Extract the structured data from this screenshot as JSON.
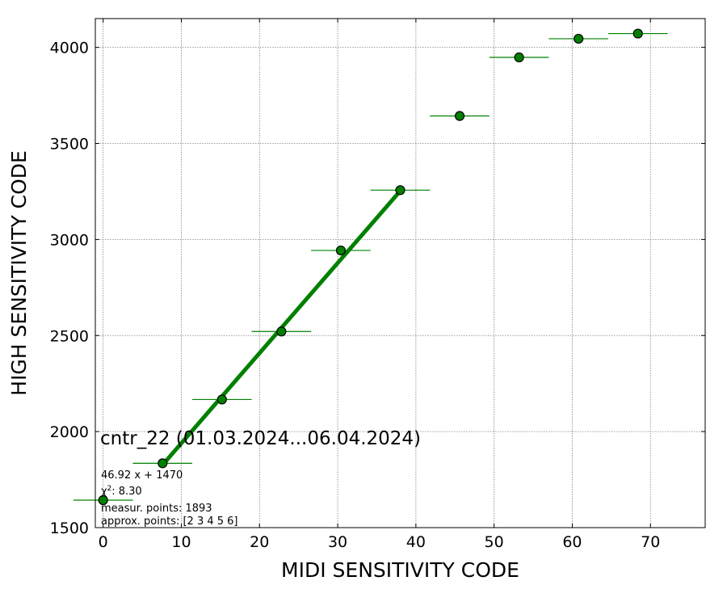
{
  "chart_data": {
    "type": "scatter",
    "xlabel": "MIDI SENSITIVITY CODE",
    "ylabel": "HIGH SENSITIVITY CODE",
    "xlim": [
      -1,
      77
    ],
    "ylim": [
      1500,
      4150
    ],
    "xticks": [
      0,
      10,
      20,
      30,
      40,
      50,
      60,
      70
    ],
    "yticks": [
      1500,
      2000,
      2500,
      3000,
      3500,
      4000
    ],
    "grid": true,
    "colors": {
      "marker": "#008000",
      "errorbar": "#008000",
      "fit_line": "#008000",
      "grid": "#808080",
      "marker_edge": "#000000"
    },
    "points": [
      {
        "x": 0.0,
        "y": 1643,
        "xerr": 3.8
      },
      {
        "x": 7.6,
        "y": 1835,
        "xerr": 3.8
      },
      {
        "x": 15.2,
        "y": 2167,
        "xerr": 3.8
      },
      {
        "x": 22.8,
        "y": 2521,
        "xerr": 3.8
      },
      {
        "x": 30.4,
        "y": 2943,
        "xerr": 3.8
      },
      {
        "x": 38.0,
        "y": 3257,
        "xerr": 3.8
      },
      {
        "x": 45.6,
        "y": 3643,
        "xerr": 3.8
      },
      {
        "x": 53.2,
        "y": 3948,
        "xerr": 3.8
      },
      {
        "x": 60.8,
        "y": 4045,
        "xerr": 3.8
      },
      {
        "x": 68.4,
        "y": 4072,
        "xerr": 3.8
      }
    ],
    "fit": {
      "slope": 46.92,
      "intercept": 1470,
      "x_range": [
        7.6,
        38.0
      ]
    },
    "annotations": {
      "title": "cntr_22 (01.03.2024...06.04.2024)",
      "equation": "46.92 x + 1470",
      "chi2_label": "χ",
      "chi2_value": ": 8.30",
      "measur_points": "measur. points: 1893",
      "approx_points": "approx. points: [2 3 4 5 6]"
    }
  }
}
